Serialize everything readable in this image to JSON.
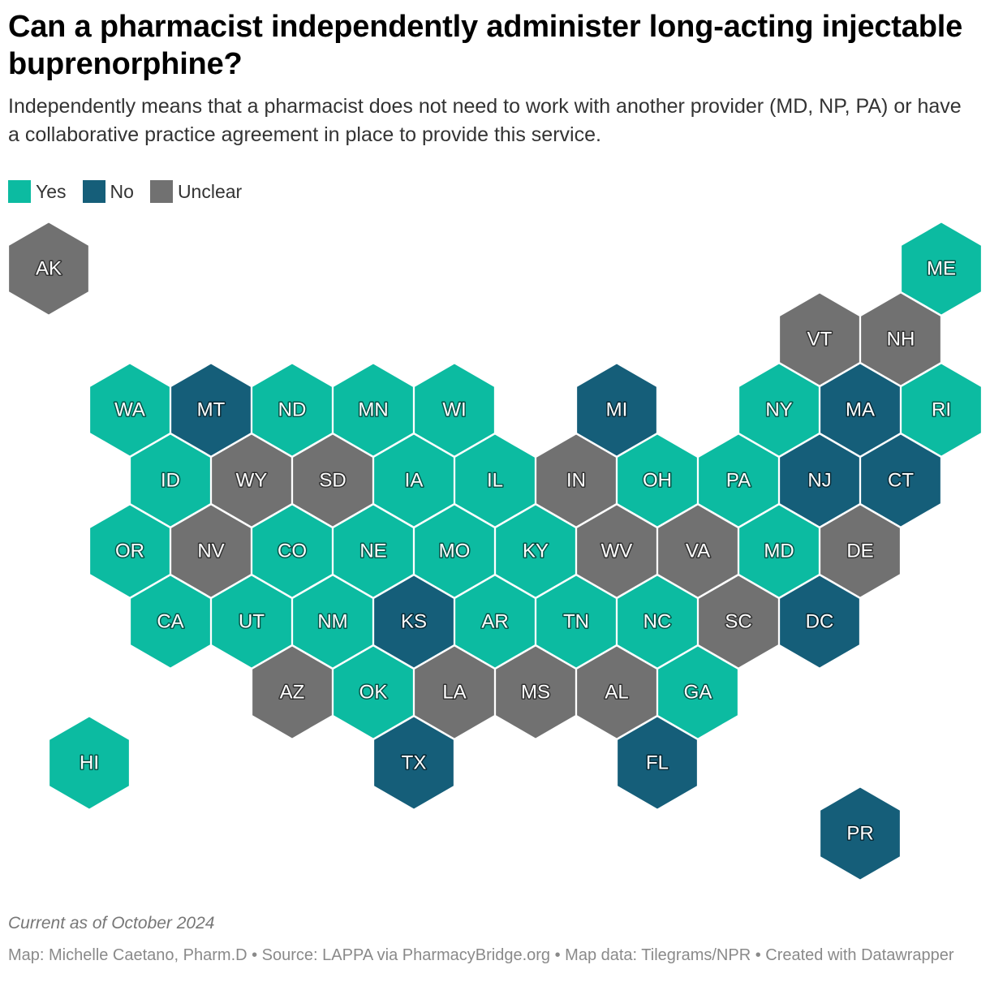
{
  "title": "Can a pharmacist independently administer long-acting injectable buprenorphine?",
  "description": "Independently means that a pharmacist does not need to work with another provider (MD, NP, PA) or have a collaborative practice agreement in place to provide this service.",
  "legend": [
    {
      "label": "Yes",
      "color": "#0cbba1"
    },
    {
      "label": "No",
      "color": "#155e79"
    },
    {
      "label": "Unclear",
      "color": "#717171"
    }
  ],
  "map_data": {
    "type": "hex-tile-map",
    "hexes": [
      {
        "state": "AK",
        "status": "Unclear",
        "row": 0,
        "col": 0
      },
      {
        "state": "ME",
        "status": "Yes",
        "row": 0,
        "col": 11
      },
      {
        "state": "VT",
        "status": "Unclear",
        "row": 1,
        "col": 9.5
      },
      {
        "state": "NH",
        "status": "Unclear",
        "row": 1,
        "col": 10.5
      },
      {
        "state": "WA",
        "status": "Yes",
        "row": 2,
        "col": 1
      },
      {
        "state": "MT",
        "status": "No",
        "row": 2,
        "col": 2
      },
      {
        "state": "ND",
        "status": "Yes",
        "row": 2,
        "col": 3
      },
      {
        "state": "MN",
        "status": "Yes",
        "row": 2,
        "col": 4
      },
      {
        "state": "WI",
        "status": "Yes",
        "row": 2,
        "col": 5
      },
      {
        "state": "MI",
        "status": "No",
        "row": 2,
        "col": 7
      },
      {
        "state": "NY",
        "status": "Yes",
        "row": 2,
        "col": 9
      },
      {
        "state": "MA",
        "status": "No",
        "row": 2,
        "col": 10
      },
      {
        "state": "RI",
        "status": "Yes",
        "row": 2,
        "col": 11
      },
      {
        "state": "ID",
        "status": "Yes",
        "row": 3,
        "col": 1.5
      },
      {
        "state": "WY",
        "status": "Unclear",
        "row": 3,
        "col": 2.5
      },
      {
        "state": "SD",
        "status": "Unclear",
        "row": 3,
        "col": 3.5
      },
      {
        "state": "IA",
        "status": "Yes",
        "row": 3,
        "col": 4.5
      },
      {
        "state": "IL",
        "status": "Yes",
        "row": 3,
        "col": 5.5
      },
      {
        "state": "IN",
        "status": "Unclear",
        "row": 3,
        "col": 6.5
      },
      {
        "state": "OH",
        "status": "Yes",
        "row": 3,
        "col": 7.5
      },
      {
        "state": "PA",
        "status": "Yes",
        "row": 3,
        "col": 8.5
      },
      {
        "state": "NJ",
        "status": "No",
        "row": 3,
        "col": 9.5
      },
      {
        "state": "CT",
        "status": "No",
        "row": 3,
        "col": 10.5
      },
      {
        "state": "OR",
        "status": "Yes",
        "row": 4,
        "col": 1
      },
      {
        "state": "NV",
        "status": "Unclear",
        "row": 4,
        "col": 2
      },
      {
        "state": "CO",
        "status": "Yes",
        "row": 4,
        "col": 3
      },
      {
        "state": "NE",
        "status": "Yes",
        "row": 4,
        "col": 4
      },
      {
        "state": "MO",
        "status": "Yes",
        "row": 4,
        "col": 5
      },
      {
        "state": "KY",
        "status": "Yes",
        "row": 4,
        "col": 6
      },
      {
        "state": "WV",
        "status": "Unclear",
        "row": 4,
        "col": 7
      },
      {
        "state": "VA",
        "status": "Unclear",
        "row": 4,
        "col": 8
      },
      {
        "state": "MD",
        "status": "Yes",
        "row": 4,
        "col": 9
      },
      {
        "state": "DE",
        "status": "Unclear",
        "row": 4,
        "col": 10
      },
      {
        "state": "CA",
        "status": "Yes",
        "row": 5,
        "col": 1.5
      },
      {
        "state": "UT",
        "status": "Yes",
        "row": 5,
        "col": 2.5
      },
      {
        "state": "NM",
        "status": "Yes",
        "row": 5,
        "col": 3.5
      },
      {
        "state": "KS",
        "status": "No",
        "row": 5,
        "col": 4.5
      },
      {
        "state": "AR",
        "status": "Yes",
        "row": 5,
        "col": 5.5
      },
      {
        "state": "TN",
        "status": "Yes",
        "row": 5,
        "col": 6.5
      },
      {
        "state": "NC",
        "status": "Yes",
        "row": 5,
        "col": 7.5
      },
      {
        "state": "SC",
        "status": "Unclear",
        "row": 5,
        "col": 8.5
      },
      {
        "state": "DC",
        "status": "No",
        "row": 5,
        "col": 9.5
      },
      {
        "state": "AZ",
        "status": "Unclear",
        "row": 6,
        "col": 3
      },
      {
        "state": "OK",
        "status": "Yes",
        "row": 6,
        "col": 4
      },
      {
        "state": "LA",
        "status": "Unclear",
        "row": 6,
        "col": 5
      },
      {
        "state": "MS",
        "status": "Unclear",
        "row": 6,
        "col": 6
      },
      {
        "state": "AL",
        "status": "Unclear",
        "row": 6,
        "col": 7
      },
      {
        "state": "GA",
        "status": "Yes",
        "row": 6,
        "col": 8
      },
      {
        "state": "HI",
        "status": "Yes",
        "row": 7,
        "col": 0.5
      },
      {
        "state": "TX",
        "status": "No",
        "row": 7,
        "col": 4.5
      },
      {
        "state": "FL",
        "status": "No",
        "row": 7,
        "col": 7.5
      },
      {
        "state": "PR",
        "status": "No",
        "row": 8,
        "col": 10
      }
    ]
  },
  "notes": "Current as of October 2024",
  "footer": "Map: Michelle Caetano, Pharm.D • Source: LAPPA via PharmacyBridge.org • Map data: Tilegrams/NPR • Created with Datawrapper"
}
